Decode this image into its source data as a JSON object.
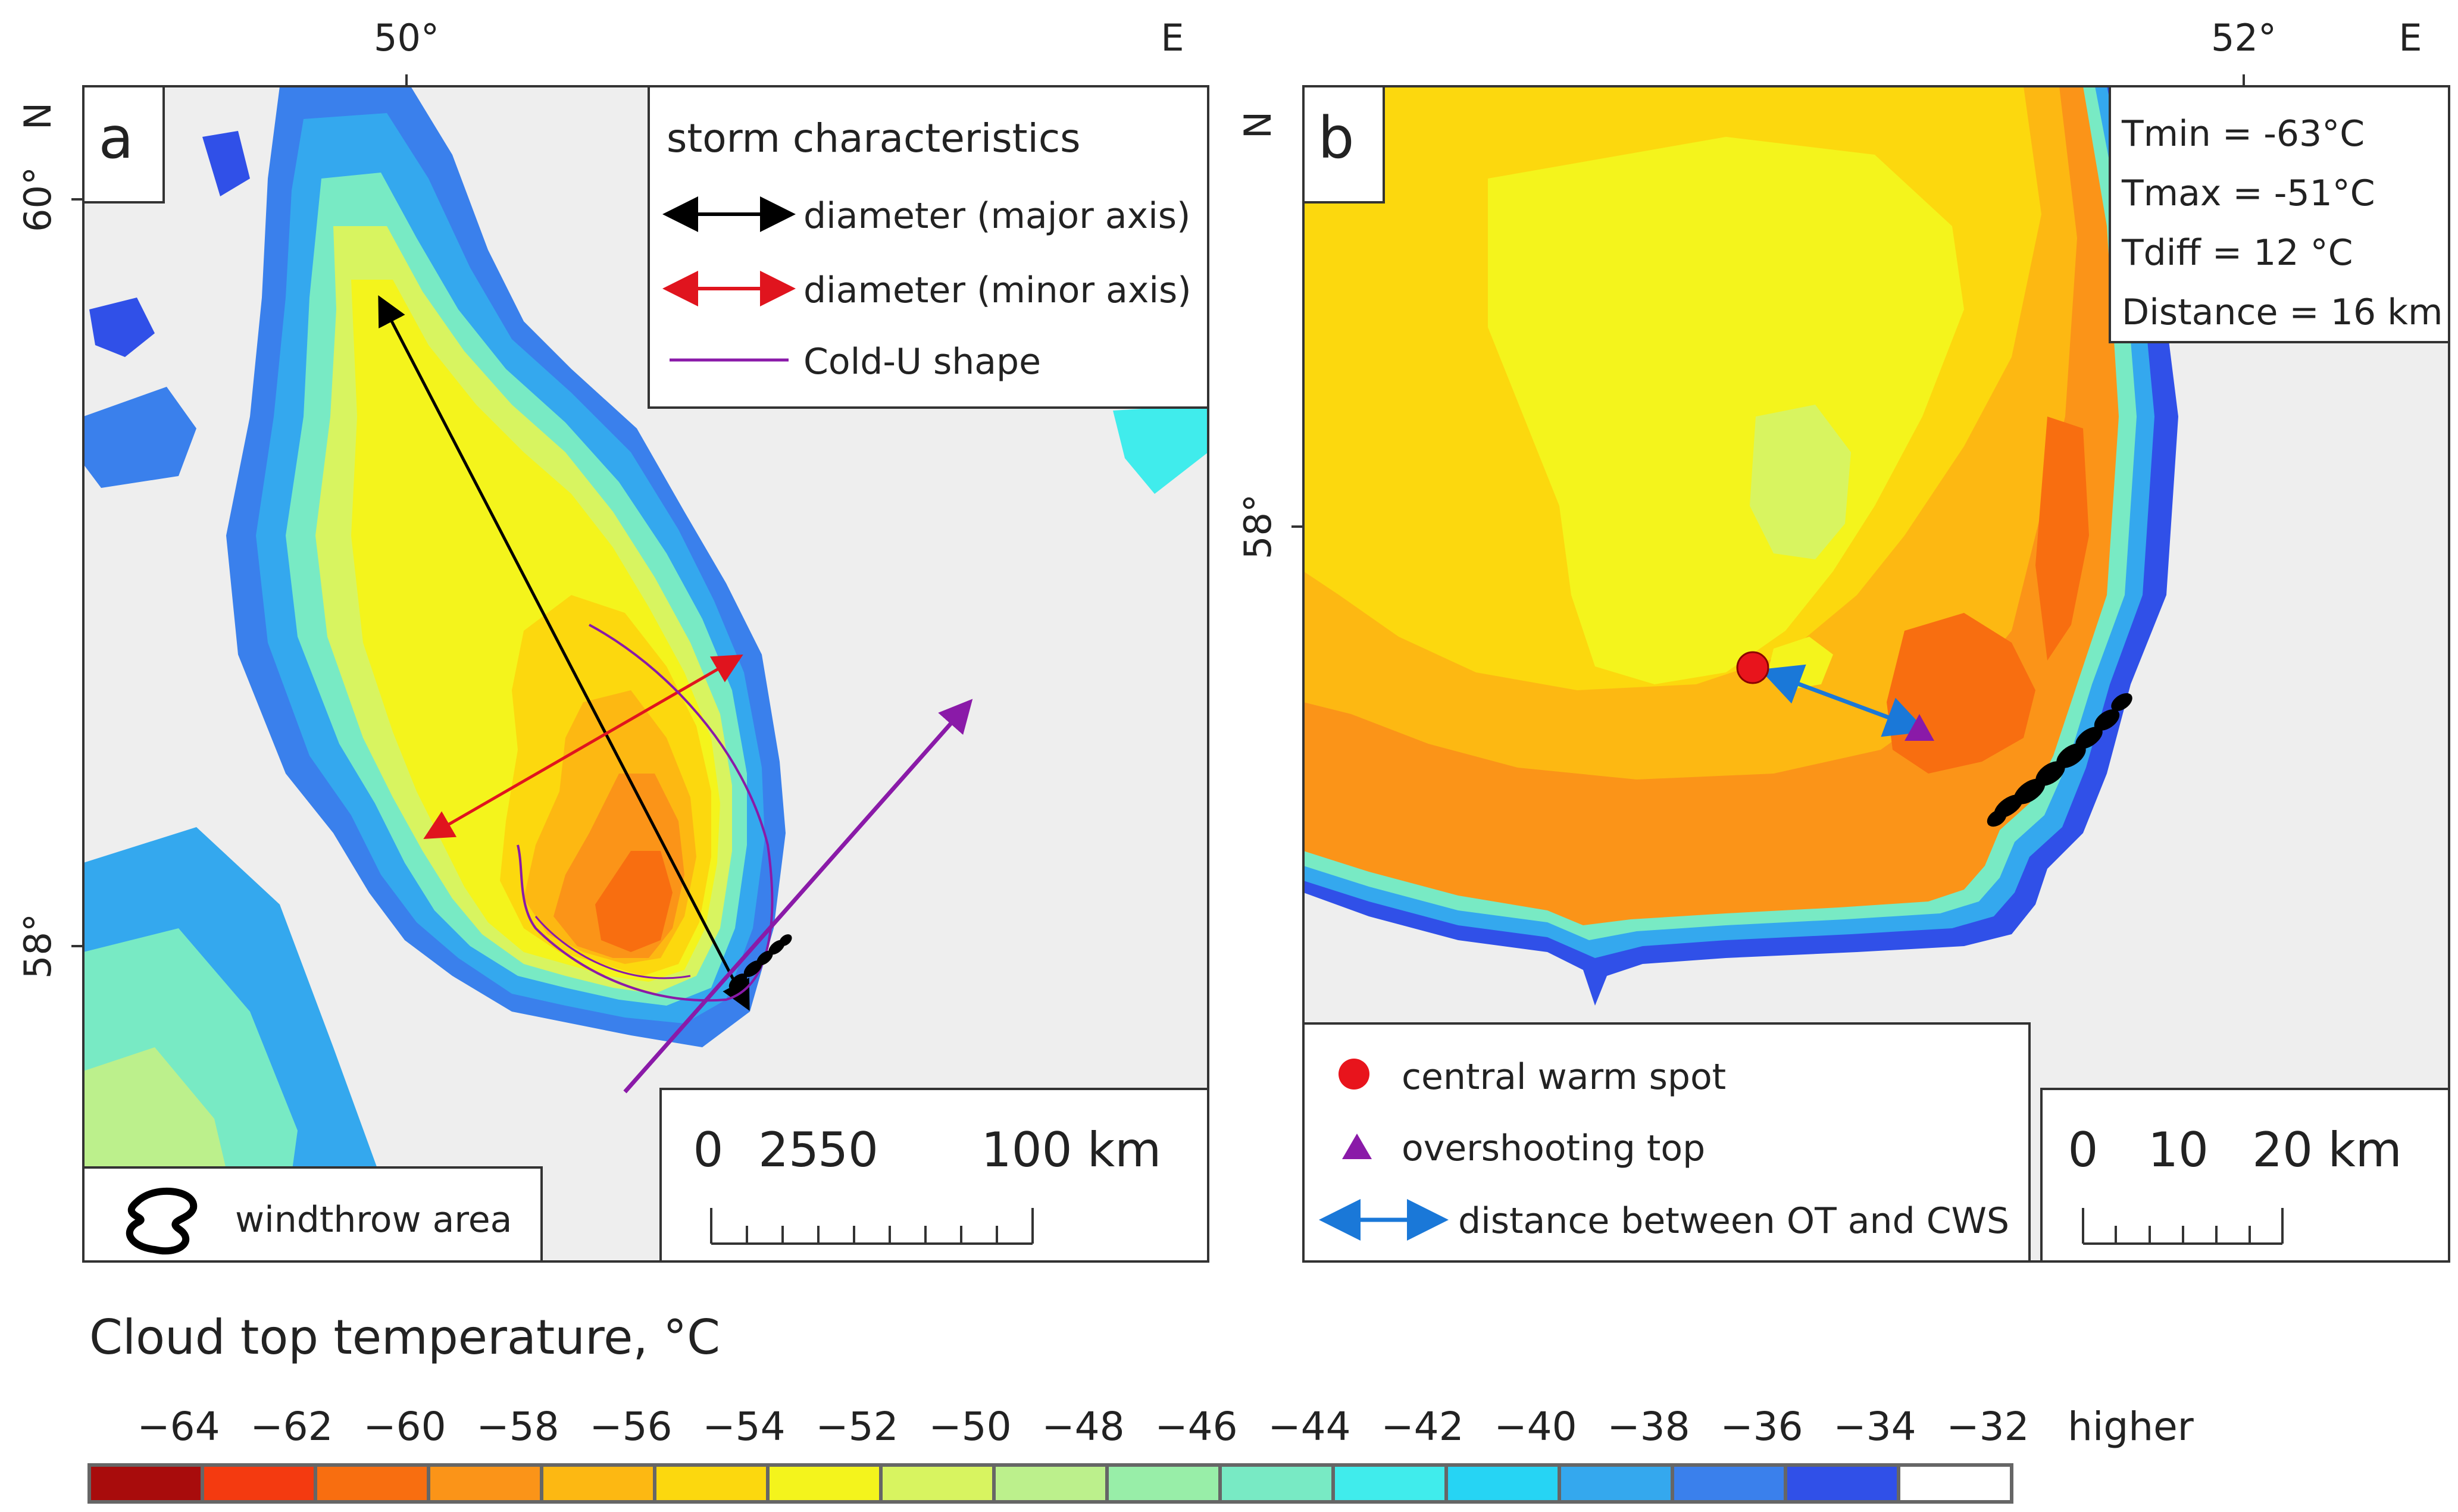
{
  "panel_a": {
    "letter": "a",
    "lon_ticks": [
      "50°",
      "E"
    ],
    "lat_ticks": [
      "60°",
      "N",
      "58°"
    ],
    "legend": {
      "title": "storm characteristics",
      "items": [
        "diameter (major axis)",
        "diameter (minor axis)",
        "Cold-U shape"
      ],
      "colors": [
        "#000000",
        "#e0141e",
        "#8a1aa8"
      ]
    },
    "scale": {
      "labels": [
        "0",
        "25",
        "50",
        "100 km"
      ]
    },
    "windthrow": {
      "label": "windthrow area"
    }
  },
  "panel_b": {
    "letter": "b",
    "lon_ticks": [
      "52°",
      "E"
    ],
    "lat_ticks": [
      "N",
      "58°"
    ],
    "stats": [
      "Tmin = -63°C",
      "Tmax = -51°C",
      "Tdiff = 12 °C",
      "Distance = 16 km"
    ],
    "legend": {
      "items": [
        "central warm spot",
        "overshooting top",
        "distance between OT and CWS"
      ],
      "colors": [
        "#e8141c",
        "#8a1aa8",
        "#1a78d8"
      ]
    },
    "scale": {
      "labels": [
        "0",
        "10",
        "20 km"
      ]
    }
  },
  "colorbar": {
    "title": "Cloud top temperature, °C",
    "labels": [
      "−64",
      "−62",
      "−60",
      "−58",
      "−56",
      "−54",
      "−52",
      "−50",
      "−48",
      "−46",
      "−44",
      "−42",
      "−40",
      "−38",
      "−36",
      "−34",
      "−32",
      "higher"
    ],
    "colors": [
      "#a80c0c",
      "#f43a10",
      "#f86e10",
      "#fb9418",
      "#fdb812",
      "#fcd80e",
      "#f4f41c",
      "#d8f460",
      "#bcf08c",
      "#98eea8",
      "#78eac4",
      "#40ecec",
      "#26d4f4",
      "#34a8ee",
      "#3a80ec",
      "#3050e8",
      "#ffffff"
    ]
  }
}
